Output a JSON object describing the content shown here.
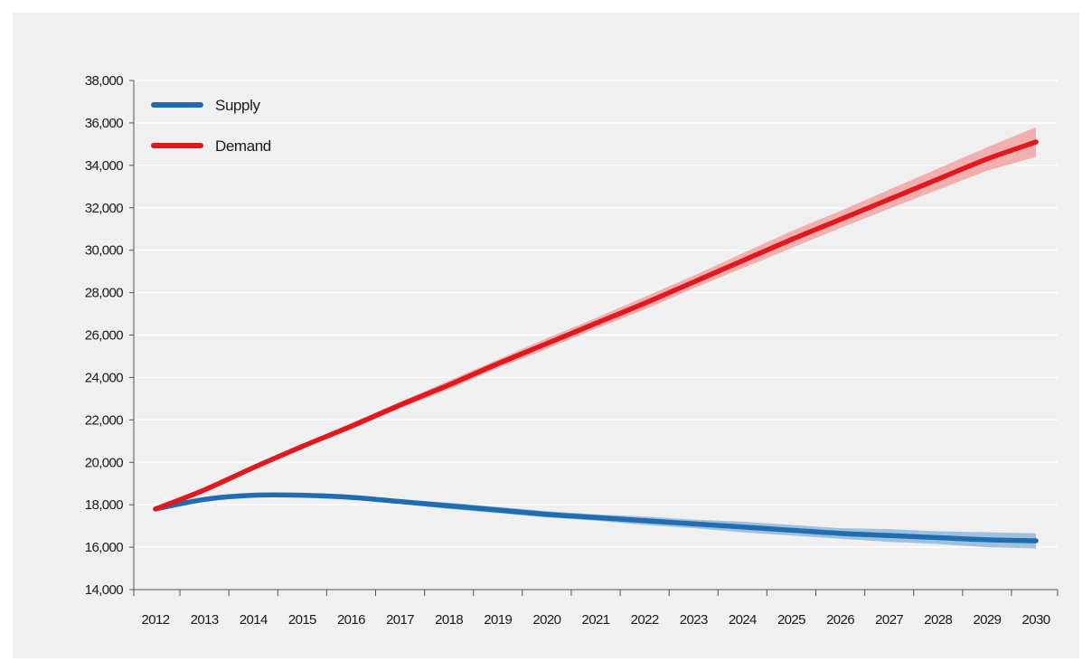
{
  "chart_data": {
    "type": "line",
    "title": "",
    "xlabel": "",
    "ylabel": "",
    "x": [
      "2012",
      "2013",
      "2014",
      "2015",
      "2016",
      "2017",
      "2018",
      "2019",
      "2020",
      "2021",
      "2022",
      "2023",
      "2024",
      "2025",
      "2026",
      "2027",
      "2028",
      "2029",
      "2030"
    ],
    "ylim": [
      14000,
      38000
    ],
    "yticks": [
      14000,
      16000,
      18000,
      20000,
      22000,
      24000,
      26000,
      28000,
      30000,
      32000,
      34000,
      36000,
      38000
    ],
    "ytick_labels": [
      "14,000",
      "16,000",
      "18,000",
      "20,000",
      "22,000",
      "24,000",
      "26,000",
      "28,000",
      "30,000",
      "32,000",
      "34,000",
      "36,000",
      "38,000"
    ],
    "grid": "horizontal",
    "legend_position": "top-left",
    "series": [
      {
        "name": "Supply",
        "color": "#1f6db0",
        "band_color": "#8fb8dc",
        "values": [
          17800,
          18250,
          18450,
          18450,
          18350,
          18150,
          17950,
          17750,
          17550,
          17400,
          17250,
          17100,
          16950,
          16800,
          16650,
          16550,
          16450,
          16350,
          16300
        ],
        "band": [
          0,
          50,
          100,
          100,
          100,
          100,
          150,
          150,
          150,
          150,
          200,
          200,
          250,
          250,
          250,
          300,
          300,
          350,
          350
        ]
      },
      {
        "name": "Demand",
        "color": "#e1191f",
        "band_color": "#f2a3a5",
        "values": [
          17800,
          18700,
          19750,
          20750,
          21700,
          22700,
          23650,
          24650,
          25600,
          26550,
          27500,
          28500,
          29500,
          30500,
          31450,
          32400,
          33350,
          34300,
          35100
        ],
        "band": [
          0,
          50,
          80,
          100,
          150,
          150,
          200,
          200,
          250,
          250,
          300,
          300,
          350,
          400,
          400,
          450,
          500,
          550,
          700
        ]
      }
    ]
  }
}
